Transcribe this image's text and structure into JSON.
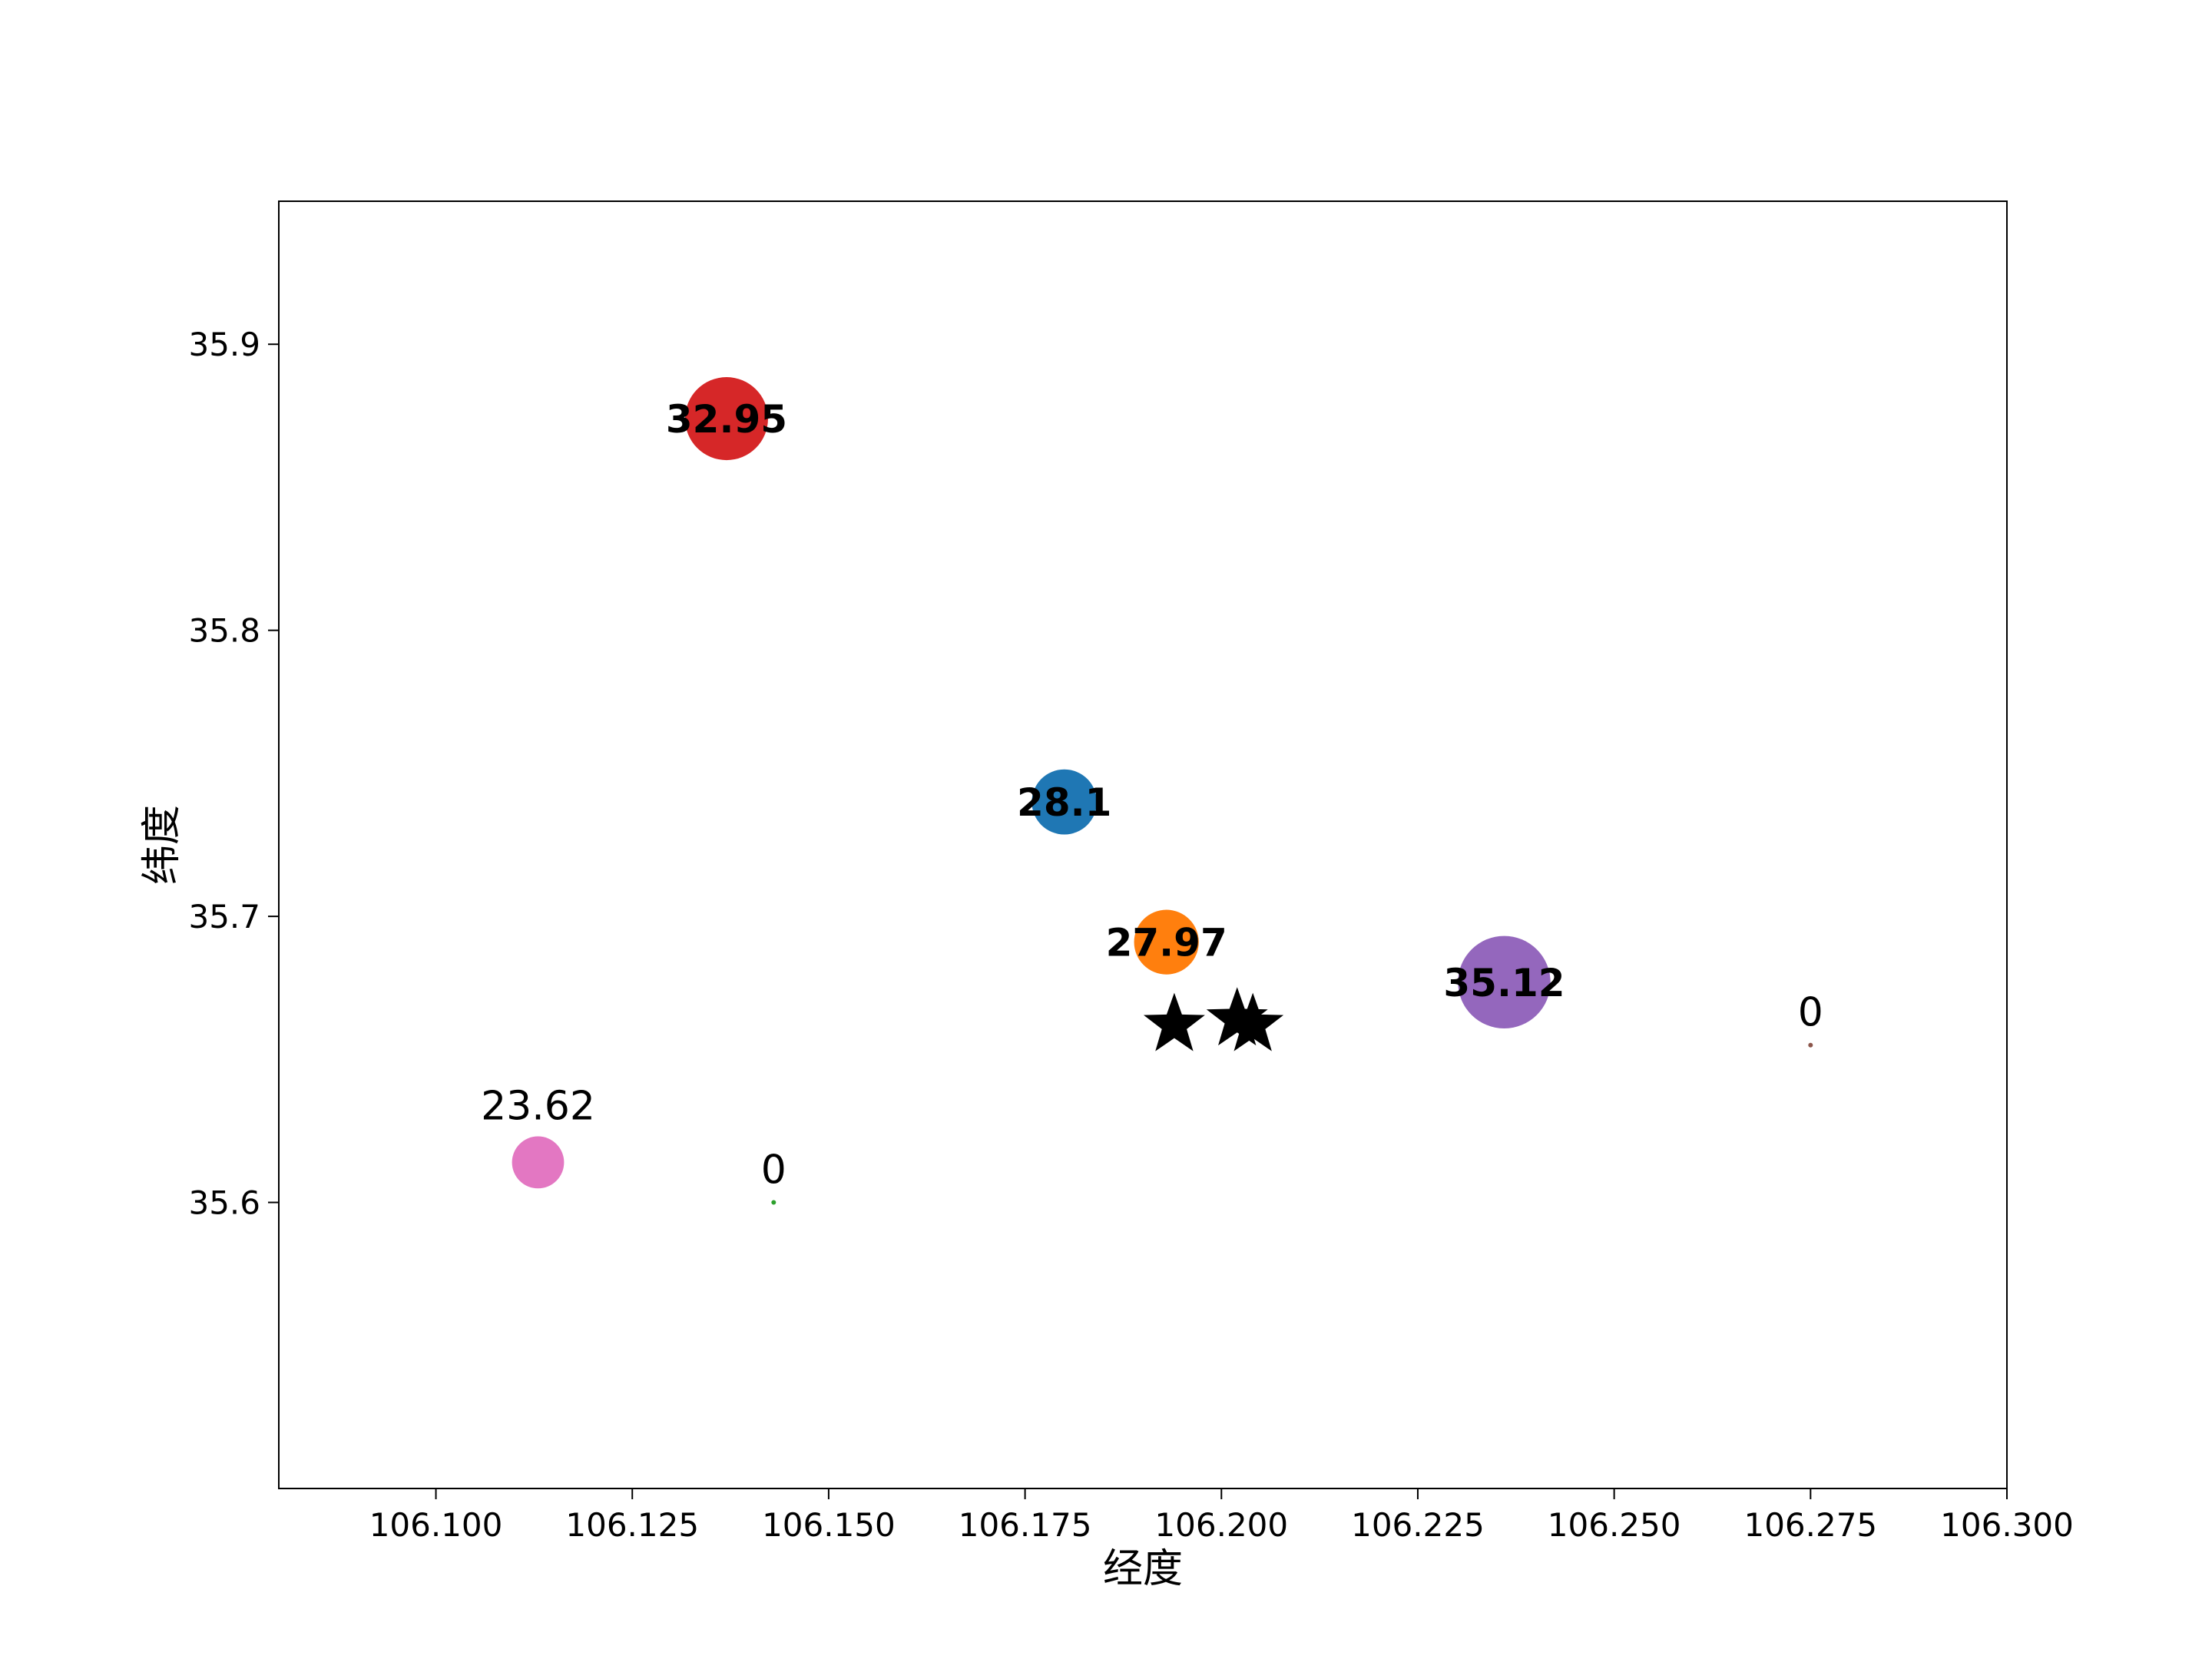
{
  "chart_data": {
    "type": "scatter",
    "title": "",
    "xlabel": "经度",
    "ylabel": "纬度",
    "xlim": [
      106.08,
      106.3
    ],
    "ylim": [
      35.5,
      35.95
    ],
    "xticks": [
      106.1,
      106.125,
      106.15,
      106.175,
      106.2,
      106.225,
      106.25,
      106.275,
      106.3
    ],
    "xtick_labels": [
      "106.100",
      "106.125",
      "106.150",
      "106.175",
      "106.200",
      "106.225",
      "106.250",
      "106.275",
      "106.300"
    ],
    "yticks": [
      35.6,
      35.7,
      35.8,
      35.9
    ],
    "ytick_labels": [
      "35.6",
      "35.7",
      "35.8",
      "35.9"
    ],
    "grid": false,
    "legend": "none",
    "bubbles": [
      {
        "x": 106.137,
        "y": 35.874,
        "value": 32.95,
        "label": "32.95",
        "color": "#d62728",
        "label_position": "inside"
      },
      {
        "x": 106.18,
        "y": 35.74,
        "value": 28.1,
        "label": "28.1",
        "color": "#1f77b4",
        "label_position": "inside"
      },
      {
        "x": 106.193,
        "y": 35.691,
        "value": 27.97,
        "label": "27.97",
        "color": "#ff7f0e",
        "label_position": "inside"
      },
      {
        "x": 106.236,
        "y": 35.677,
        "value": 35.12,
        "label": "35.12",
        "color": "#9467bd",
        "label_position": "inside"
      },
      {
        "x": 106.113,
        "y": 35.614,
        "value": 23.62,
        "label": "23.62",
        "color": "#e377c2",
        "label_position": "above"
      },
      {
        "x": 106.143,
        "y": 35.6,
        "value": 0,
        "label": "0",
        "color": "#2ca02c",
        "label_position": "above"
      },
      {
        "x": 106.275,
        "y": 35.655,
        "value": 0,
        "label": "0",
        "color": "#8c564b",
        "label_position": "above"
      }
    ],
    "stars": [
      {
        "x": 106.194,
        "y": 35.662
      },
      {
        "x": 106.202,
        "y": 35.664
      },
      {
        "x": 106.204,
        "y": 35.662
      }
    ],
    "star_color": "#000000"
  }
}
